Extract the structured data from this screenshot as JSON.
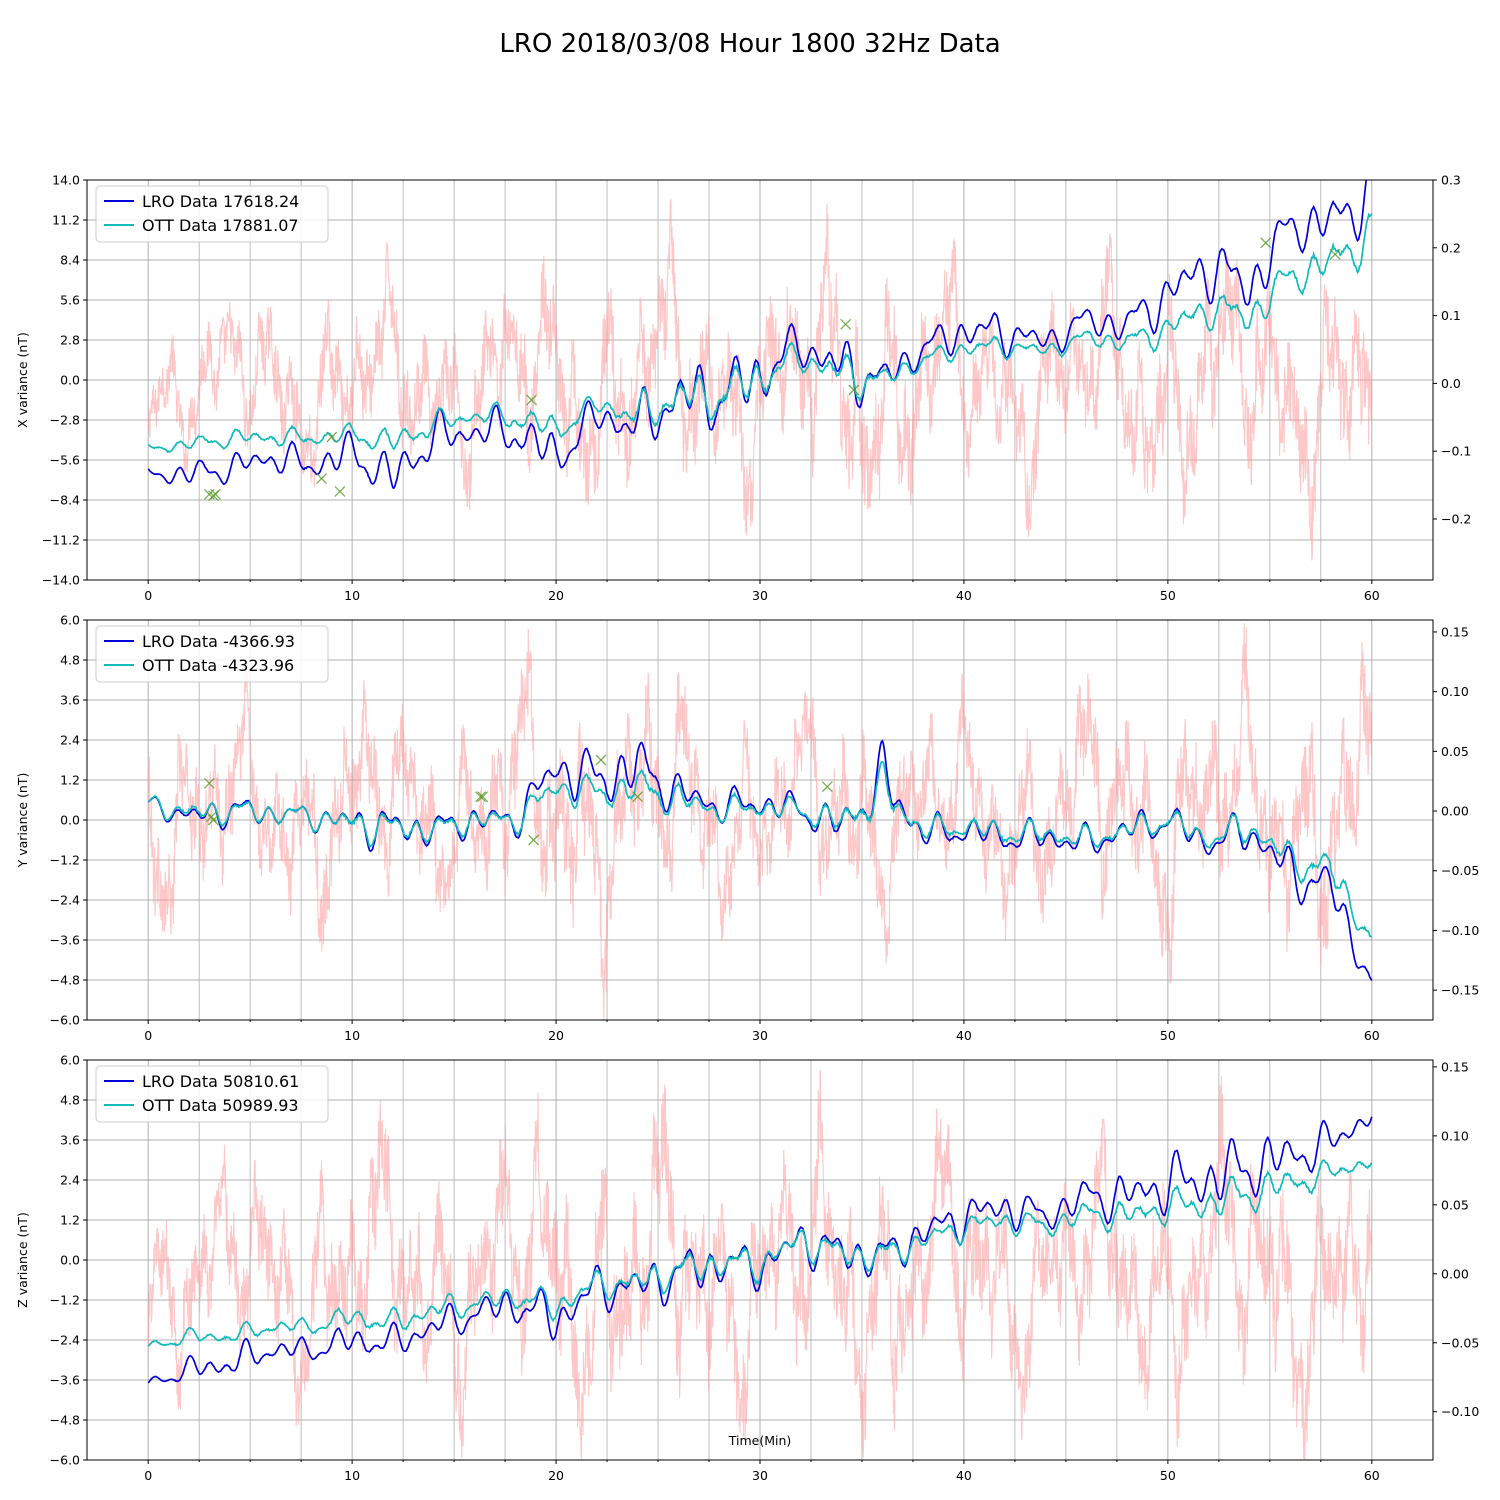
{
  "figure": {
    "title": "LRO 2018/03/08 Hour 1800 32Hz Data",
    "colors": {
      "lro": "#0000dd",
      "ott": "#11bbbb",
      "diff": "#ff9999",
      "marker": "#5a9a2a",
      "grid": "#b0b0b0"
    }
  },
  "chart_data": [
    {
      "type": "line",
      "title": "",
      "xlabel": "",
      "ylabel": "X variance (nT)",
      "xlim": [
        -3,
        63
      ],
      "ylim": [
        -14.0,
        14.0
      ],
      "y2lim": [
        -0.29,
        0.3
      ],
      "grid": true,
      "legend_position": "top-left",
      "x_ticks": [
        "0",
        "10",
        "20",
        "30",
        "40",
        "50",
        "60"
      ],
      "y_ticks": [
        "14.0",
        "11.2",
        "8.4",
        "5.6",
        "2.8",
        "0.0",
        "-2.8",
        "-5.6",
        "-8.4",
        "-11.2",
        "-14.0"
      ],
      "y2_ticks": [
        "0.3",
        "0.2",
        "0.1",
        "0.0",
        "-0.1",
        "-0.2"
      ],
      "series": [
        {
          "name": "LRO Data 17618.24",
          "axis": "left",
          "x": [
            0,
            2,
            4,
            6,
            8,
            10,
            12,
            14,
            16,
            18,
            20,
            22,
            24,
            26,
            28,
            30,
            32,
            34,
            36,
            38,
            40,
            42,
            44,
            46,
            48,
            50,
            52,
            54,
            56,
            58,
            60
          ],
          "values": [
            -6.6,
            -6.6,
            -6.2,
            -5.4,
            -6.0,
            -5.1,
            -6.9,
            -4.0,
            -3.6,
            -3.6,
            -5.4,
            -2.5,
            -3.2,
            -1.2,
            -1.2,
            0.3,
            2.5,
            0.7,
            0.0,
            2.2,
            3.4,
            3.4,
            2.6,
            4.2,
            3.8,
            6.0,
            8.0,
            6.5,
            10.8,
            11.0,
            13.2
          ],
          "amplitude": [
            0.4,
            0.8,
            0.8,
            0.8,
            1.0,
            1.2,
            1.4,
            1.3,
            1.0,
            1.4,
            1.4,
            1.1,
            1.5,
            1.9,
            1.9,
            1.9,
            1.2,
            1.9,
            1.2,
            0.9,
            1.2,
            1.2,
            0.9,
            0.9,
            1.2,
            1.4,
            1.7,
            1.8,
            1.3,
            1.7,
            1.8
          ]
        },
        {
          "name": "OTT Data 17881.07",
          "axis": "left",
          "x": [
            0,
            2,
            4,
            6,
            8,
            10,
            12,
            14,
            16,
            18,
            20,
            22,
            24,
            26,
            28,
            30,
            32,
            34,
            36,
            38,
            40,
            42,
            44,
            46,
            48,
            50,
            52,
            54,
            56,
            58,
            60
          ],
          "values": [
            -4.8,
            -4.5,
            -4.1,
            -4.0,
            -4.1,
            -3.8,
            -4.4,
            -3.1,
            -2.5,
            -2.6,
            -3.5,
            -1.7,
            -2.5,
            -1.2,
            -1.2,
            0.2,
            1.6,
            0.4,
            0.0,
            1.4,
            2.2,
            2.4,
            2.0,
            3.0,
            2.6,
            3.6,
            5.0,
            4.5,
            7.2,
            8.3,
            10.2
          ],
          "amplitude": [
            0.3,
            0.4,
            0.5,
            0.5,
            0.5,
            0.6,
            0.8,
            0.7,
            0.5,
            0.8,
            0.8,
            0.6,
            1.0,
            1.3,
            1.3,
            1.3,
            0.8,
            1.3,
            0.8,
            0.5,
            0.6,
            0.6,
            0.5,
            0.5,
            0.7,
            0.9,
            1.0,
            1.2,
            1.0,
            1.2,
            1.3
          ]
        },
        {
          "name": "",
          "axis": "right",
          "role": "difference",
          "x": [
            0,
            5,
            10,
            15,
            20,
            25,
            30,
            35,
            40,
            45,
            50,
            55,
            60
          ],
          "values": [
            0,
            0,
            0,
            0,
            0,
            0,
            0,
            0,
            0,
            0,
            0,
            0,
            0
          ],
          "amplitude": [
            0.07,
            0.09,
            0.11,
            0.1,
            0.12,
            0.14,
            0.12,
            0.16,
            0.12,
            0.12,
            0.14,
            0.13,
            0.14
          ]
        },
        {
          "name": "",
          "axis": "left",
          "role": "markers",
          "x": [
            3.0,
            3.2,
            3.3,
            8.5,
            9.0,
            9.4,
            18.8,
            34.2,
            34.6,
            54.8,
            58.2
          ],
          "values": [
            -8.0,
            -8.1,
            -8.0,
            -6.9,
            -4.0,
            -7.8,
            -1.4,
            3.9,
            -0.7,
            9.6,
            8.8
          ]
        }
      ]
    },
    {
      "type": "line",
      "title": "",
      "xlabel": "",
      "ylabel": "Y variance (nT)",
      "xlim": [
        -3,
        63
      ],
      "ylim": [
        -6.0,
        6.0
      ],
      "y2lim": [
        -0.175,
        0.16
      ],
      "grid": true,
      "legend_position": "top-left",
      "x_ticks": [
        "0",
        "10",
        "20",
        "30",
        "40",
        "50",
        "60"
      ],
      "y_ticks": [
        "6.0",
        "4.8",
        "3.6",
        "2.4",
        "1.2",
        "0.0",
        "-1.2",
        "-2.4",
        "-3.6",
        "-4.8",
        "-6.0"
      ],
      "y2_ticks": [
        "0.15",
        "0.10",
        "0.05",
        "0.00",
        "-0.05",
        "-0.10",
        "-0.15"
      ],
      "series": [
        {
          "name": "LRO Data -4366.93",
          "axis": "left",
          "x": [
            0,
            2,
            4,
            6,
            8,
            10,
            12,
            14,
            16,
            18,
            20,
            22,
            24,
            26,
            28,
            30,
            32,
            34,
            36,
            38,
            40,
            42,
            44,
            46,
            48,
            50,
            52,
            54,
            56,
            58,
            60
          ],
          "values": [
            0.5,
            0.1,
            0.3,
            0.2,
            0.1,
            -0.1,
            -0.2,
            -0.3,
            0.0,
            0.0,
            1.6,
            1.2,
            1.6,
            0.8,
            0.4,
            0.5,
            0.3,
            -0.2,
            1.2,
            -0.4,
            -0.3,
            -0.5,
            -0.5,
            -0.7,
            -0.3,
            0.0,
            -0.7,
            -0.3,
            -1.6,
            -2.0,
            -4.9
          ],
          "amplitude": [
            0.2,
            0.3,
            0.4,
            0.3,
            0.3,
            0.5,
            0.5,
            0.4,
            0.4,
            0.4,
            0.6,
            0.7,
            0.8,
            0.5,
            0.4,
            0.4,
            0.4,
            0.5,
            0.8,
            0.4,
            0.4,
            0.4,
            0.4,
            0.4,
            0.4,
            0.4,
            0.4,
            0.5,
            0.6,
            0.6,
            0.4
          ]
        },
        {
          "name": "OTT Data -4323.96",
          "axis": "left",
          "x": [
            0,
            2,
            4,
            6,
            8,
            10,
            12,
            14,
            16,
            18,
            20,
            22,
            24,
            26,
            28,
            30,
            32,
            34,
            36,
            38,
            40,
            42,
            44,
            46,
            48,
            50,
            52,
            54,
            56,
            58,
            60
          ],
          "values": [
            0.5,
            0.2,
            0.3,
            0.2,
            0.1,
            -0.1,
            -0.2,
            -0.3,
            0.0,
            0.0,
            1.0,
            0.8,
            1.0,
            0.6,
            0.3,
            0.4,
            0.3,
            -0.1,
            0.9,
            -0.3,
            -0.2,
            -0.4,
            -0.4,
            -0.6,
            -0.3,
            0.0,
            -0.6,
            -0.2,
            -1.2,
            -1.5,
            -3.6
          ],
          "amplitude": [
            0.2,
            0.3,
            0.3,
            0.3,
            0.3,
            0.4,
            0.4,
            0.3,
            0.3,
            0.3,
            0.4,
            0.4,
            0.5,
            0.4,
            0.3,
            0.3,
            0.3,
            0.4,
            0.6,
            0.3,
            0.3,
            0.3,
            0.3,
            0.3,
            0.3,
            0.3,
            0.3,
            0.4,
            0.4,
            0.5,
            0.3
          ]
        },
        {
          "name": "",
          "axis": "right",
          "role": "difference",
          "x": [
            0,
            5,
            10,
            15,
            20,
            25,
            30,
            35,
            40,
            45,
            50,
            55,
            60
          ],
          "values": [
            0,
            0,
            0,
            0,
            0,
            0,
            0,
            0,
            0,
            0,
            0,
            0,
            0
          ],
          "amplitude": [
            0.07,
            0.06,
            0.07,
            0.06,
            0.09,
            0.08,
            0.06,
            0.07,
            0.06,
            0.07,
            0.08,
            0.08,
            0.09
          ]
        },
        {
          "name": "",
          "axis": "left",
          "role": "markers",
          "x": [
            3.0,
            3.1,
            3.2,
            16.3,
            16.4,
            18.9,
            22.2,
            24.0,
            33.3
          ],
          "values": [
            1.1,
            0.1,
            0.0,
            0.7,
            0.7,
            -0.6,
            1.8,
            0.7,
            1.0
          ]
        }
      ]
    },
    {
      "type": "line",
      "title": "",
      "xlabel": "Time(Min)",
      "ylabel": "Z variance (nT)",
      "xlim": [
        -3,
        63
      ],
      "ylim": [
        -6.0,
        6.0
      ],
      "y2lim": [
        -0.135,
        0.155
      ],
      "grid": true,
      "legend_position": "top-left",
      "x_ticks": [
        "0",
        "10",
        "20",
        "30",
        "40",
        "50",
        "60"
      ],
      "y_ticks": [
        "6.0",
        "4.8",
        "3.6",
        "2.4",
        "1.2",
        "0.0",
        "-1.2",
        "-2.4",
        "-3.6",
        "-4.8",
        "-6.0"
      ],
      "y2_ticks": [
        "0.15",
        "0.10",
        "0.05",
        "0.00",
        "-0.05",
        "-0.10"
      ],
      "series": [
        {
          "name": "LRO Data 50810.61",
          "axis": "left",
          "x": [
            0,
            2,
            4,
            6,
            8,
            10,
            12,
            14,
            16,
            18,
            20,
            22,
            24,
            26,
            28,
            30,
            32,
            34,
            36,
            38,
            40,
            42,
            44,
            46,
            48,
            50,
            52,
            54,
            56,
            58,
            60
          ],
          "values": [
            -3.7,
            -3.3,
            -3.1,
            -2.7,
            -2.7,
            -2.4,
            -2.5,
            -2.0,
            -1.6,
            -1.3,
            -1.8,
            -0.8,
            -0.8,
            -0.4,
            -0.1,
            -0.2,
            0.6,
            0.2,
            0.1,
            0.8,
            1.3,
            1.6,
            1.3,
            1.9,
            1.9,
            2.3,
            2.4,
            2.8,
            3.1,
            3.5,
            4.4
          ],
          "amplitude": [
            0.1,
            0.3,
            0.4,
            0.3,
            0.3,
            0.4,
            0.4,
            0.4,
            0.4,
            0.5,
            0.6,
            0.5,
            0.6,
            0.6,
            0.6,
            0.5,
            0.5,
            0.6,
            0.5,
            0.5,
            0.5,
            0.5,
            0.4,
            0.5,
            0.6,
            0.7,
            0.8,
            0.8,
            0.6,
            0.5,
            0.3
          ]
        },
        {
          "name": "OTT Data 50989.93",
          "axis": "left",
          "x": [
            0,
            2,
            4,
            6,
            8,
            10,
            12,
            14,
            16,
            18,
            20,
            22,
            24,
            26,
            28,
            30,
            32,
            34,
            36,
            38,
            40,
            42,
            44,
            46,
            48,
            50,
            52,
            54,
            56,
            58,
            60
          ],
          "values": [
            -2.6,
            -2.3,
            -2.3,
            -2.0,
            -2.0,
            -1.7,
            -1.9,
            -1.5,
            -1.3,
            -1.1,
            -1.4,
            -0.7,
            -0.7,
            -0.3,
            -0.1,
            -0.1,
            0.6,
            0.2,
            0.1,
            0.6,
            1.0,
            1.2,
            1.0,
            1.4,
            1.3,
            1.6,
            1.7,
            2.0,
            2.3,
            2.6,
            3.0
          ],
          "amplitude": [
            0.1,
            0.2,
            0.2,
            0.2,
            0.2,
            0.3,
            0.3,
            0.3,
            0.3,
            0.3,
            0.4,
            0.3,
            0.4,
            0.4,
            0.4,
            0.4,
            0.4,
            0.4,
            0.4,
            0.3,
            0.3,
            0.3,
            0.3,
            0.3,
            0.4,
            0.4,
            0.5,
            0.5,
            0.4,
            0.3,
            0.2
          ]
        },
        {
          "name": "",
          "axis": "right",
          "role": "difference",
          "x": [
            0,
            5,
            10,
            15,
            20,
            25,
            30,
            35,
            40,
            45,
            50,
            55,
            60
          ],
          "values": [
            0,
            0,
            0,
            0,
            0,
            0,
            0,
            0,
            0,
            0,
            0,
            0,
            0
          ],
          "amplitude": [
            0.05,
            0.06,
            0.07,
            0.07,
            0.08,
            0.08,
            0.07,
            0.08,
            0.07,
            0.06,
            0.07,
            0.08,
            0.07
          ]
        }
      ]
    }
  ]
}
